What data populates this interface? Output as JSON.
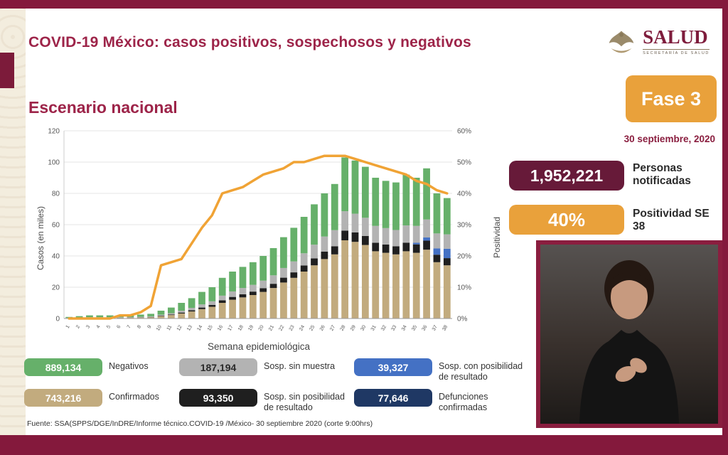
{
  "header": {
    "title": "COVID-19 México: casos positivos, sospechosos y negativos",
    "logo": {
      "name": "SALUD",
      "subtitle": "SECRETARÍA DE SALUD"
    }
  },
  "subtitle": "Escenario nacional",
  "phase_badge": {
    "label": "Fase 3",
    "date": "30 septiembre, 2020",
    "color": "#e9a13b"
  },
  "stats": {
    "notified": {
      "value": "1,952,221",
      "label": "Personas notificadas",
      "color": "#671a39"
    },
    "positivity": {
      "value": "40%",
      "label": "Positividad SE 38",
      "color": "#e9a13b"
    }
  },
  "legend": {
    "items": [
      {
        "value": "889,134",
        "label": "Negativos",
        "color": "#66b06a"
      },
      {
        "value": "187,194",
        "label": "Sosp. sin muestra",
        "color": "#b3b3b3"
      },
      {
        "value": "39,327",
        "label": "Sosp. con posibilidad de resultado",
        "color": "#4471c4"
      },
      {
        "value": "743,216",
        "label": "Confirmados",
        "color": "#c2ab7e"
      },
      {
        "value": "93,350",
        "label": "Sosp. sin posibilidad de resultado",
        "color": "#1f1f1f"
      },
      {
        "value": "77,646",
        "label": "Defunciones confirmadas",
        "color": "#1f3864"
      }
    ]
  },
  "footer": {
    "source": "Fuente: SSA(SPPS/DGE/InDRE/Informe técnico.COVID-19 /México- 30 septiembre 2020 (corte 9:00hrs)"
  },
  "chart_data": {
    "type": "stacked-bar+line",
    "xlabel": "Semana epidemiológica",
    "ylabel": "Casos (en miles)",
    "y2label": "Positividad",
    "ylim": [
      0,
      120
    ],
    "y2lim": [
      0,
      60
    ],
    "yticks": [
      0,
      20,
      40,
      60,
      80,
      100,
      120
    ],
    "y2ticks": [
      "0%",
      "10%",
      "20%",
      "30%",
      "40%",
      "50%",
      "60%"
    ],
    "x": [
      1,
      2,
      3,
      4,
      5,
      6,
      7,
      8,
      9,
      10,
      11,
      12,
      13,
      14,
      15,
      16,
      17,
      18,
      19,
      20,
      21,
      22,
      23,
      24,
      25,
      26,
      27,
      28,
      29,
      30,
      31,
      32,
      33,
      34,
      35,
      36,
      37,
      38
    ],
    "series": [
      {
        "name": "Confirmados",
        "color": "#c2ab7e",
        "values": [
          0.2,
          0.3,
          0.4,
          0.4,
          0.4,
          0.4,
          0.5,
          0.6,
          0.8,
          1.5,
          2.2,
          3.2,
          4.5,
          6,
          7.5,
          10,
          12,
          13.5,
          15,
          17,
          19.5,
          23,
          26,
          30,
          34,
          38,
          41,
          50,
          49,
          47,
          43,
          42,
          41,
          43,
          42,
          44,
          36,
          34
        ]
      },
      {
        "name": "Sosp. sin posibilidad de resultado",
        "color": "#1f1f1f",
        "values": [
          0.05,
          0.1,
          0.1,
          0.1,
          0.1,
          0.1,
          0.1,
          0.15,
          0.2,
          0.3,
          0.4,
          0.6,
          0.8,
          1,
          1.2,
          1.6,
          1.8,
          2,
          2.2,
          2.4,
          2.7,
          3.1,
          3.5,
          3.9,
          4.4,
          4.8,
          5.2,
          6.2,
          6,
          5.8,
          5.4,
          5.3,
          5.2,
          5.5,
          5.4,
          5.8,
          4.8,
          4.6
        ]
      },
      {
        "name": "Sosp. con posibilidad de resultado",
        "color": "#4471c4",
        "values": [
          0,
          0,
          0,
          0,
          0,
          0,
          0,
          0,
          0,
          0,
          0,
          0,
          0,
          0,
          0,
          0,
          0,
          0,
          0,
          0,
          0,
          0,
          0,
          0,
          0,
          0,
          0,
          0,
          0,
          0,
          0,
          0,
          0,
          0,
          1,
          2,
          4,
          6
        ]
      },
      {
        "name": "Sosp. sin muestra",
        "color": "#b3b3b3",
        "values": [
          0.15,
          0.2,
          0.3,
          0.3,
          0.3,
          0.3,
          0.3,
          0.35,
          0.4,
          0.6,
          0.8,
          1.2,
          1.5,
          2,
          2.3,
          3,
          3.5,
          4,
          4.3,
          4.8,
          5.4,
          6.2,
          7,
          7.8,
          8.8,
          9.6,
          10.3,
          12.4,
          12,
          11.6,
          10.8,
          10.5,
          10.4,
          11,
          10.8,
          11.5,
          9.6,
          9.2
        ]
      },
      {
        "name": "Negativos",
        "color": "#66b06a",
        "values": [
          0.6,
          0.9,
          1.2,
          1.2,
          1.2,
          1.2,
          1.1,
          1.4,
          1.6,
          2.6,
          3.6,
          5,
          6.2,
          8,
          9,
          11.4,
          12.7,
          13.5,
          14.5,
          15.8,
          17.4,
          19.7,
          21.5,
          23.3,
          25.8,
          27.6,
          29.5,
          34.4,
          34,
          32.6,
          30.8,
          30.2,
          30.4,
          32.5,
          30.8,
          32.7,
          25.6,
          23.2
        ]
      }
    ],
    "line": {
      "name": "Positividad",
      "color": "#f0a335",
      "values": [
        0,
        0,
        0,
        0,
        0,
        1,
        1,
        2,
        4,
        17,
        18,
        19,
        24,
        29,
        33,
        40,
        41,
        42,
        44,
        46,
        47,
        48,
        50,
        50,
        51,
        52,
        52,
        52,
        51,
        50,
        49,
        48,
        47,
        46,
        44,
        43,
        41,
        40
      ]
    }
  }
}
